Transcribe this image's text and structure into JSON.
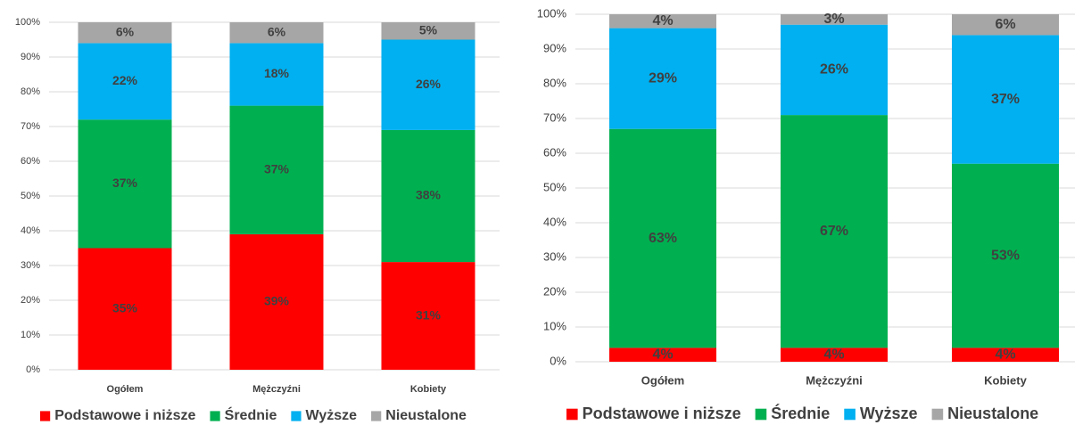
{
  "chart_data": [
    {
      "type": "stacked-bar",
      "categories": [
        "Ogółem",
        "Mężczyźni",
        "Kobiety"
      ],
      "series": [
        {
          "name": "Podstawowe i niższe",
          "color": "#ff0000",
          "values": [
            35,
            39,
            31
          ],
          "value_labels": [
            "35%",
            "39%",
            "31%"
          ]
        },
        {
          "name": "Średnie",
          "color": "#00b050",
          "values": [
            37,
            37,
            38
          ],
          "value_labels": [
            "37%",
            "37%",
            "38%"
          ]
        },
        {
          "name": "Wyższe",
          "color": "#00b0f0",
          "values": [
            22,
            18,
            26
          ],
          "value_labels": [
            "22%",
            "18%",
            "26%"
          ]
        },
        {
          "name": "Nieustalone",
          "color": "#a6a6a6",
          "values": [
            6,
            6,
            5
          ],
          "value_labels": [
            "6%",
            "6%",
            "5%"
          ]
        }
      ],
      "ylim": [
        0,
        100
      ],
      "yticks": [
        {
          "value": 0,
          "label": "0%"
        },
        {
          "value": 10,
          "label": "10%"
        },
        {
          "value": 20,
          "label": "20%"
        },
        {
          "value": 30,
          "label": "30%"
        },
        {
          "value": 40,
          "label": "40%"
        },
        {
          "value": 50,
          "label": "50%"
        },
        {
          "value": 60,
          "label": "60%"
        },
        {
          "value": 70,
          "label": "70%"
        },
        {
          "value": 80,
          "label": "80%"
        },
        {
          "value": 90,
          "label": "90%"
        },
        {
          "value": 100,
          "label": "100%"
        }
      ],
      "grid": true,
      "legend": "bottom"
    },
    {
      "type": "stacked-bar",
      "categories": [
        "Ogółem",
        "Mężczyźni",
        "Kobiety"
      ],
      "series": [
        {
          "name": "Podstawowe i niższe",
          "color": "#ff0000",
          "values": [
            4,
            4,
            4
          ],
          "value_labels": [
            "4%",
            "4%",
            "4%"
          ]
        },
        {
          "name": "Średnie",
          "color": "#00b050",
          "values": [
            63,
            67,
            53
          ],
          "value_labels": [
            "63%",
            "67%",
            "53%"
          ]
        },
        {
          "name": "Wyższe",
          "color": "#00b0f0",
          "values": [
            29,
            26,
            37
          ],
          "value_labels": [
            "29%",
            "26%",
            "37%"
          ]
        },
        {
          "name": "Nieustalone",
          "color": "#a6a6a6",
          "values": [
            4,
            3,
            6
          ],
          "value_labels": [
            "4%",
            "3%",
            "6%"
          ]
        }
      ],
      "ylim": [
        0,
        100
      ],
      "yticks": [
        {
          "value": 0,
          "label": "0%"
        },
        {
          "value": 10,
          "label": "10%"
        },
        {
          "value": 20,
          "label": "20%"
        },
        {
          "value": 30,
          "label": "30%"
        },
        {
          "value": 40,
          "label": "40%"
        },
        {
          "value": 50,
          "label": "50%"
        },
        {
          "value": 60,
          "label": "60%"
        },
        {
          "value": 70,
          "label": "70%"
        },
        {
          "value": 80,
          "label": "80%"
        },
        {
          "value": 90,
          "label": "90%"
        },
        {
          "value": 100,
          "label": "100%"
        }
      ],
      "grid": true,
      "legend": "bottom"
    }
  ]
}
